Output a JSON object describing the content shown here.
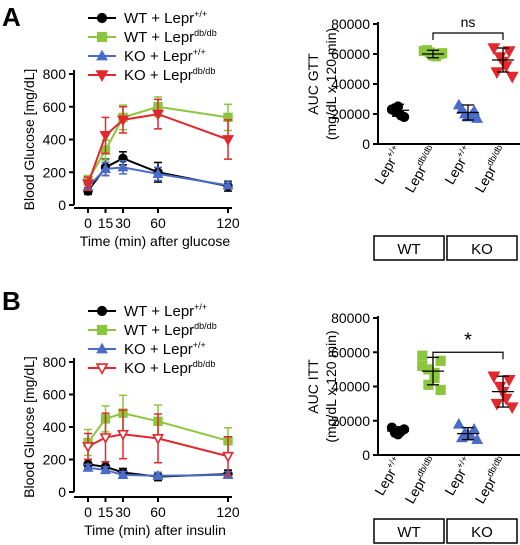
{
  "colors": {
    "wt_ctrl": "#000000",
    "wt_dbdb": "#8cc63f",
    "ko_ctrl": "#4a6cc8",
    "ko_dbdb": "#e0282d"
  },
  "panel_labels": [
    "A",
    "B"
  ],
  "legend": [
    {
      "key": "wt_ctrl",
      "base": "WT + Lepr",
      "sup": "+/+",
      "marker": "circle"
    },
    {
      "key": "wt_dbdb",
      "base": "WT + Lepr",
      "sup": "db/db",
      "marker": "square"
    },
    {
      "key": "ko_ctrl",
      "base": "KO + Lepr",
      "sup": "+/+",
      "marker": "triangle-up"
    },
    {
      "key": "ko_dbdb",
      "base": "KO + Lepr",
      "sup": "db/db",
      "marker": "triangle-down"
    }
  ],
  "x_tick_labels": [
    "0",
    "15",
    "30",
    "60",
    "120"
  ],
  "scatter_groups": [
    {
      "base": "Lepr",
      "sup": "+/+"
    },
    {
      "base": "Lepr",
      "sup": "db/db"
    },
    {
      "base": "Lepr",
      "sup": "+/+"
    },
    {
      "base": "Lepr",
      "sup": "db/db"
    }
  ],
  "genotype_boxes": [
    "WT",
    "KO"
  ],
  "chart_data": [
    {
      "id": "A-line",
      "type": "line",
      "xlabel": "Time (min) after glucose",
      "ylabel": "Blood Glucose [mg/dL]",
      "x": [
        0,
        15,
        30,
        60,
        120
      ],
      "ylim": [
        0,
        800
      ],
      "yticks": [
        0,
        200,
        400,
        600,
        800
      ],
      "series": [
        {
          "key": "wt_ctrl",
          "name": "WT + Lepr+/+",
          "values": [
            85,
            230,
            285,
            200,
            115
          ],
          "err": [
            20,
            50,
            40,
            60,
            30
          ]
        },
        {
          "key": "wt_dbdb",
          "name": "WT + Leprdb/db",
          "values": [
            150,
            335,
            535,
            600,
            535
          ],
          "err": [
            30,
            60,
            75,
            60,
            80
          ]
        },
        {
          "key": "ko_ctrl",
          "name": "KO + Lepr+/+",
          "values": [
            110,
            220,
            230,
            190,
            120
          ],
          "err": [
            20,
            40,
            40,
            40,
            20
          ]
        },
        {
          "key": "ko_dbdb",
          "name": "KO + Leprdb/db",
          "values": [
            130,
            425,
            520,
            555,
            400
          ],
          "err": [
            40,
            110,
            80,
            90,
            120
          ]
        }
      ]
    },
    {
      "id": "A-scatter",
      "type": "scatter",
      "ylabel": "AUC GTT",
      "ylabel2": "(mg/dL x 120 min)",
      "ylim": [
        0,
        80000
      ],
      "yticks": [
        0,
        20000,
        40000,
        60000,
        80000
      ],
      "significance": {
        "text": "ns",
        "from": 1,
        "to": 3,
        "y": 74000
      },
      "groups": [
        {
          "key": "wt_ctrl",
          "mean": 22500,
          "sd": 4000,
          "points": [
            23000,
            19000,
            25000,
            22000,
            18000
          ],
          "marker": "circle"
        },
        {
          "key": "wt_dbdb",
          "mean": 60000,
          "sd": 2500,
          "points": [
            62000,
            60000,
            61000,
            59000,
            58500,
            62500,
            60500
          ],
          "marker": "square"
        },
        {
          "key": "ko_ctrl",
          "mean": 21000,
          "sd": 5000,
          "points": [
            26000,
            22000,
            20000,
            18000,
            19000,
            23000,
            17000
          ],
          "marker": "triangle-up"
        },
        {
          "key": "ko_dbdb",
          "mean": 56000,
          "sd": 8000,
          "points": [
            64000,
            62000,
            58000,
            55000,
            52000,
            48000,
            45000
          ],
          "marker": "triangle-down"
        }
      ]
    },
    {
      "id": "B-line",
      "type": "line",
      "xlabel": "Time (min) after insulin",
      "ylabel": "Blood Glucose [mg/dL]",
      "x": [
        0,
        15,
        30,
        60,
        120
      ],
      "ylim": [
        0,
        800
      ],
      "yticks": [
        0,
        200,
        400,
        600,
        800
      ],
      "series": [
        {
          "key": "wt_ctrl",
          "name": "WT + Lepr+/+",
          "values": [
            170,
            155,
            120,
            95,
            110
          ],
          "err": [
            30,
            30,
            25,
            25,
            25
          ]
        },
        {
          "key": "wt_dbdb",
          "name": "WT + Leprdb/db",
          "values": [
            305,
            450,
            485,
            435,
            315
          ],
          "err": [
            80,
            80,
            110,
            100,
            80
          ]
        },
        {
          "key": "ko_ctrl",
          "name": "KO + Lepr+/+",
          "values": [
            150,
            135,
            105,
            100,
            105
          ],
          "err": [
            20,
            20,
            20,
            20,
            20
          ]
        },
        {
          "key": "ko_dbdb",
          "name": "KO + Leprdb/db",
          "values": [
            280,
            335,
            355,
            330,
            220
          ],
          "err": [
            80,
            150,
            150,
            150,
            120
          ]
        }
      ]
    },
    {
      "id": "B-scatter",
      "type": "scatter",
      "ylabel": "AUC ITT",
      "ylabel2": "(mg/dL x 120 min)",
      "ylim": [
        0,
        80000
      ],
      "yticks": [
        0,
        20000,
        40000,
        60000,
        80000
      ],
      "significance": {
        "text": "*",
        "from": 1,
        "to": 3,
        "y": 60000
      },
      "groups": [
        {
          "key": "wt_ctrl",
          "mean": 14000,
          "sd": 2500,
          "points": [
            16000,
            14000,
            12000,
            13000,
            15000
          ],
          "marker": "circle"
        },
        {
          "key": "wt_dbdb",
          "mean": 49000,
          "sd": 8000,
          "points": [
            58000,
            55000,
            50000,
            48000,
            45000,
            41000,
            38000,
            52000
          ],
          "marker": "square"
        },
        {
          "key": "ko_ctrl",
          "mean": 12500,
          "sd": 3500,
          "points": [
            18000,
            15000,
            13000,
            12000,
            11000,
            10000,
            9000
          ],
          "marker": "triangle-up"
        },
        {
          "key": "ko_dbdb",
          "mean": 37000,
          "sd": 9000,
          "points": [
            46000,
            44000,
            40000,
            37000,
            33000,
            30000,
            28000
          ],
          "marker": "triangle-down"
        }
      ]
    }
  ]
}
